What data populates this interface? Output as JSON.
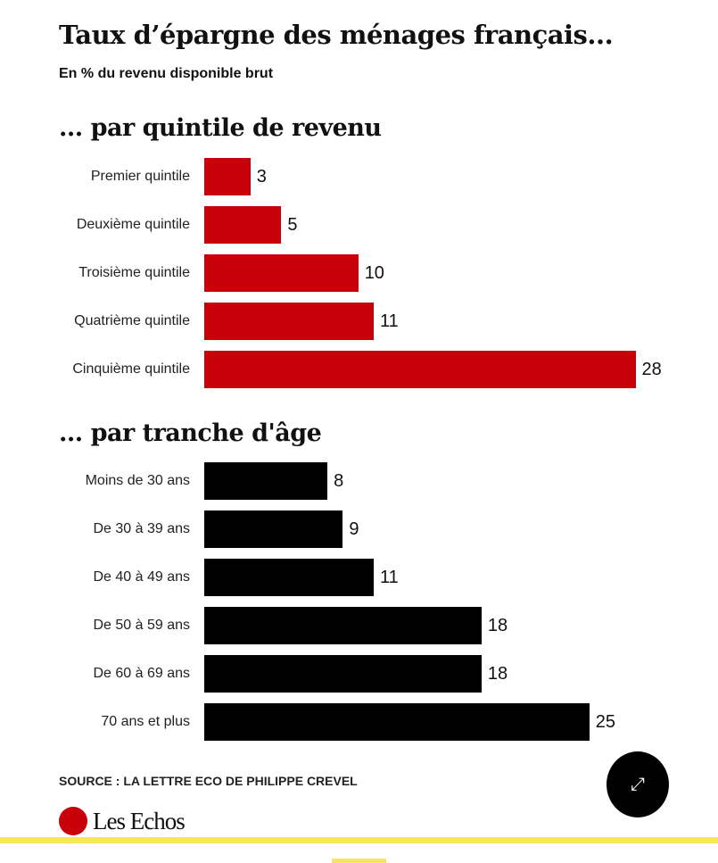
{
  "title": "Taux d’épargne des ménages français...",
  "subtitle": "En % du revenu disponible brut",
  "source": "SOURCE : LA LETTRE ECO DE PHILIPPE CREVEL",
  "logo": "Les Echos",
  "colors": {
    "income": "#c8000a",
    "age": "#000000",
    "highlight": "#f7e55d"
  },
  "chart_data": [
    {
      "type": "bar",
      "orientation": "horizontal",
      "title": "... par quintile de revenu",
      "categories": [
        "Premier quintile",
        "Deuxième quintile",
        "Troisième quintile",
        "Quatrième quintile",
        "Cinquième quintile"
      ],
      "values": [
        3,
        5,
        10,
        11,
        28
      ],
      "unit": "%"
    },
    {
      "type": "bar",
      "orientation": "horizontal",
      "title": "... par tranche d'âge",
      "categories": [
        "Moins de 30 ans",
        "De 30 à 39 ans",
        "De 40 à 49 ans",
        "De 50 à 59 ans",
        "De 60 à 69 ans",
        "70 ans et plus"
      ],
      "values": [
        8,
        9,
        11,
        18,
        18,
        25
      ],
      "unit": "%"
    }
  ]
}
